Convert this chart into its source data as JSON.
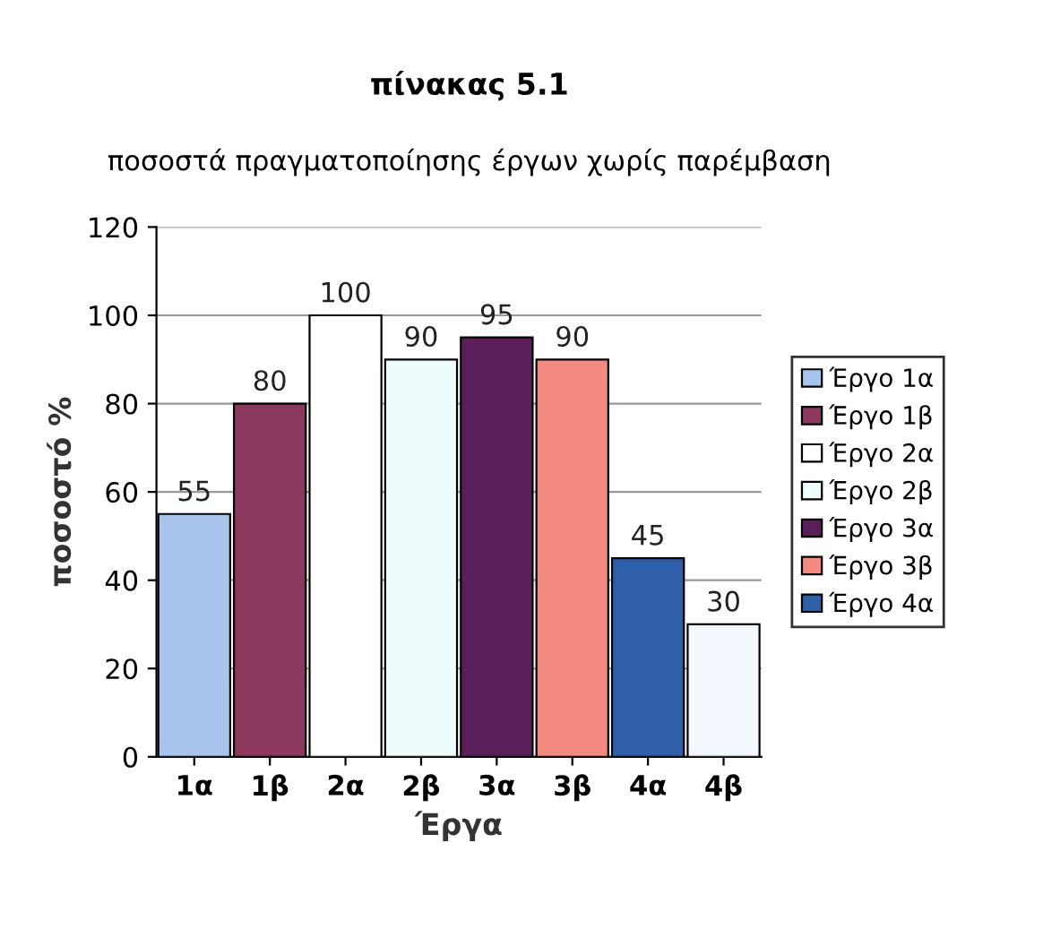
{
  "chart_data": {
    "type": "bar",
    "title": "πίνακας 5.1",
    "subtitle": "ποσοστά πραγματοποίησης έργων χωρίς παρέμβαση",
    "xlabel": "Έργα",
    "ylabel": "ποσοστό %",
    "categories": [
      "1α",
      "1β",
      "2α",
      "2β",
      "3α",
      "3β",
      "4α",
      "4β"
    ],
    "series": [
      {
        "name": "Έργο 1α",
        "color": "#a9c4ec",
        "values": [
          55,
          null,
          null,
          null,
          null,
          null,
          null,
          null
        ]
      },
      {
        "name": "Έργο 1β",
        "color": "#8b3a5e",
        "values": [
          null,
          80,
          null,
          null,
          null,
          null,
          null,
          null
        ]
      },
      {
        "name": "Έργο 2α",
        "color": "#ffffff",
        "values": [
          null,
          null,
          100,
          null,
          null,
          null,
          null,
          null
        ]
      },
      {
        "name": "Έργο 2β",
        "color": "#eefcfc",
        "values": [
          null,
          null,
          null,
          90,
          null,
          null,
          null,
          null
        ]
      },
      {
        "name": "Έργο 3α",
        "color": "#5a1f5a",
        "values": [
          null,
          null,
          null,
          null,
          95,
          null,
          null,
          null
        ]
      },
      {
        "name": "Έργο 3β",
        "color": "#f48a80",
        "values": [
          null,
          null,
          null,
          null,
          null,
          90,
          null,
          null
        ]
      },
      {
        "name": "Έργο 4α",
        "color": "#2f5fa8",
        "values": [
          null,
          null,
          null,
          null,
          null,
          null,
          45,
          null
        ]
      },
      {
        "color": "#f4f8ff",
        "values": [
          null,
          null,
          null,
          null,
          null,
          null,
          null,
          30
        ]
      }
    ],
    "ylim": [
      0,
      120
    ],
    "yticks": [
      0,
      20,
      40,
      60,
      80,
      100,
      120
    ],
    "grid": "y",
    "legend": "right",
    "data_labels": true
  }
}
